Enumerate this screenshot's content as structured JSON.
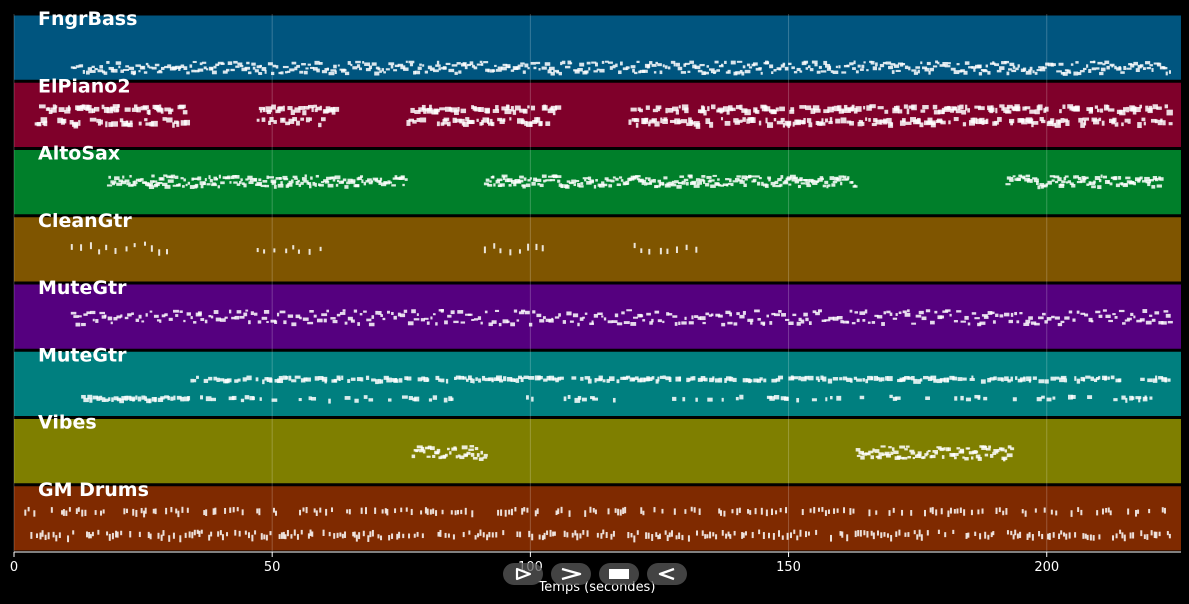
{
  "chart_data": {
    "type": "piano-roll",
    "xlabel": "Temps (secondes)",
    "xlim": [
      0,
      226
    ],
    "xticks": [
      0,
      50,
      100,
      150,
      200
    ],
    "grid": true,
    "tracks": [
      {
        "name": "FngrBass",
        "color": "#00557f",
        "segments": [
          [
            11,
            224
          ]
        ],
        "low": 0.12,
        "high": 0.3,
        "style": "bass",
        "density": 2.2
      },
      {
        "name": "ElPiano2",
        "color": "#7f002a",
        "segments": [
          [
            4,
            33
          ],
          [
            47,
            62
          ],
          [
            76,
            105
          ],
          [
            119,
            135
          ],
          [
            136,
            224
          ]
        ],
        "low": 0.42,
        "high": 0.62,
        "style": "chords",
        "density": 3.0
      },
      {
        "name": "AltoSax",
        "color": "#007f2a",
        "segments": [
          [
            18,
            76
          ],
          [
            91,
            163
          ],
          [
            192,
            222
          ]
        ],
        "low": 0.45,
        "high": 0.62,
        "style": "melody",
        "density": 3.0
      },
      {
        "name": "CleanGtr",
        "color": "#7f5500",
        "segments": [
          [
            11,
            31
          ],
          [
            47,
            60
          ],
          [
            91,
            103
          ],
          [
            120,
            133
          ]
        ],
        "low": 0.52,
        "high": 0.6,
        "style": "sparse",
        "density": 0.6
      },
      {
        "name": "MuteGtr",
        "color": "#55007f",
        "segments": [
          [
            11,
            224
          ]
        ],
        "low": 0.4,
        "high": 0.62,
        "style": "bass",
        "density": 1.6
      },
      {
        "name": "MuteGtr",
        "color": "#007f7f",
        "segments": [
          [
            13,
            224
          ]
        ],
        "low": 0.3,
        "high": 0.6,
        "style": "mixed",
        "density": 1.8
      },
      {
        "name": "Vibes",
        "color": "#7f7f00",
        "segments": [
          [
            77,
            91
          ],
          [
            163,
            193
          ]
        ],
        "low": 0.4,
        "high": 0.6,
        "style": "melody",
        "density": 3.0
      },
      {
        "name": "GM Drums",
        "color": "#7f2a00",
        "segments": [
          [
            2,
            224
          ]
        ],
        "low": 0.28,
        "high": 0.65,
        "style": "drums",
        "density": 2.0
      }
    ]
  },
  "transport": {
    "buttons": [
      "play",
      "forward",
      "stop",
      "rewind"
    ]
  }
}
